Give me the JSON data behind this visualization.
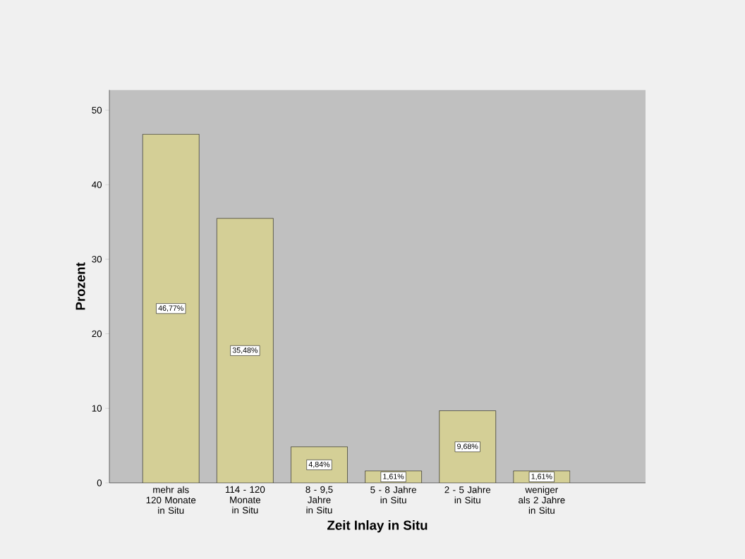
{
  "chart_data": {
    "type": "bar",
    "xlabel": "Zeit Inlay in Situ",
    "ylabel": "Prozent",
    "categories": [
      "mehr als 120 Monate in Situ",
      "114 - 120 Monate in Situ",
      "8 - 9,5 Jahre in Situ",
      "5 - 8 Jahre in Situ",
      "2 - 5 Jahre in Situ",
      "weniger als 2 Jahre in Situ"
    ],
    "values": [
      46.77,
      35.48,
      4.84,
      1.61,
      9.68,
      1.61
    ],
    "value_labels": [
      "46,77%",
      "35,48%",
      "4,84%",
      "1,61%",
      "9,68%",
      "1,61%"
    ],
    "color": "#d4cf96",
    "ylim": [
      0,
      52.7
    ],
    "yticks": [
      0,
      10,
      20,
      30,
      40,
      50
    ],
    "grid": false
  }
}
